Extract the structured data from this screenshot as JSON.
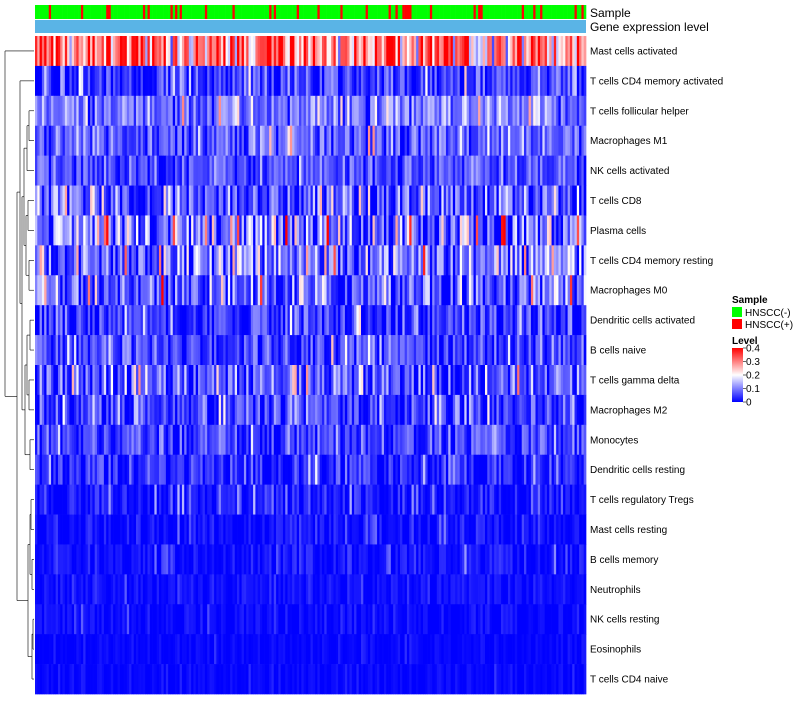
{
  "chart_data": {
    "type": "heatmap",
    "title": "",
    "sample_count": 240,
    "annotation_rows": [
      {
        "name": "Sample",
        "kind": "categorical"
      },
      {
        "name": "Gene expression level",
        "kind": "constant",
        "color": "#5ab4e6"
      }
    ],
    "sample_groups": [
      {
        "label": "HNSCC(-)",
        "color": "#00ff00"
      },
      {
        "label": "HNSCC(+)",
        "color": "#ff0000"
      }
    ],
    "sample_group_fraction_positive": 0.18,
    "rows": [
      {
        "name": "Mast cells activated",
        "mean": 0.3,
        "spread": 0.1
      },
      {
        "name": "T cells CD4 memory activated",
        "mean": 0.04,
        "spread": 0.05
      },
      {
        "name": "T cells follicular helper",
        "mean": 0.09,
        "spread": 0.05
      },
      {
        "name": "Macrophages M1",
        "mean": 0.07,
        "spread": 0.05
      },
      {
        "name": "NK cells activated",
        "mean": 0.06,
        "spread": 0.04
      },
      {
        "name": "T cells CD8",
        "mean": 0.06,
        "spread": 0.07
      },
      {
        "name": "Plasma cells",
        "mean": 0.1,
        "spread": 0.09
      },
      {
        "name": "T cells CD4 memory resting",
        "mean": 0.09,
        "spread": 0.07
      },
      {
        "name": "Macrophages M0",
        "mean": 0.07,
        "spread": 0.07
      },
      {
        "name": "Dendritic cells activated",
        "mean": 0.04,
        "spread": 0.05
      },
      {
        "name": "B cells naive",
        "mean": 0.05,
        "spread": 0.05
      },
      {
        "name": "T cells gamma delta",
        "mean": 0.06,
        "spread": 0.06
      },
      {
        "name": "Macrophages M2",
        "mean": 0.05,
        "spread": 0.05
      },
      {
        "name": "Monocytes",
        "mean": 0.05,
        "spread": 0.04
      },
      {
        "name": "Dendritic cells resting",
        "mean": 0.03,
        "spread": 0.04
      },
      {
        "name": "T cells regulatory  Tregs",
        "mean": 0.02,
        "spread": 0.03
      },
      {
        "name": "Mast cells resting",
        "mean": 0.01,
        "spread": 0.02
      },
      {
        "name": "B cells memory",
        "mean": 0.01,
        "spread": 0.02
      },
      {
        "name": "Neutrophils",
        "mean": 0.01,
        "spread": 0.015
      },
      {
        "name": "NK cells resting",
        "mean": 0.005,
        "spread": 0.015
      },
      {
        "name": "Eosinophils",
        "mean": 0.003,
        "spread": 0.01
      },
      {
        "name": "T cells CD4 naive",
        "mean": 0.003,
        "spread": 0.01
      }
    ],
    "color_scale": {
      "min": 0,
      "max": 0.4,
      "stops": [
        {
          "value": 0,
          "color": "#0000ff"
        },
        {
          "value": 0.2,
          "color": "#ffffff"
        },
        {
          "value": 0.4,
          "color": "#ff0000"
        }
      ]
    },
    "dendrogram": "rows clustered (left side)"
  },
  "legend": {
    "sample_title": "Sample",
    "level_title": "Level",
    "level_ticks": [
      "0.4",
      "0.3",
      "0.2",
      "0.1",
      "0"
    ],
    "level_tick_values": [
      0.4,
      0.3,
      0.2,
      0.1,
      0
    ]
  }
}
